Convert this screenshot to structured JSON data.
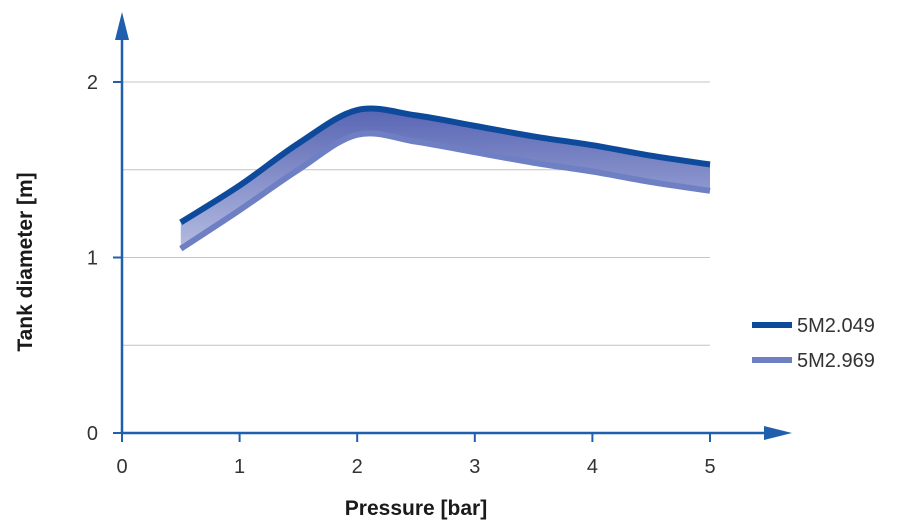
{
  "chart_data": {
    "type": "line",
    "xlabel": "Pressure [bar]",
    "ylabel": "Tank diameter [m]",
    "xlim": [
      0,
      5.6
    ],
    "ylim": [
      0,
      2.4
    ],
    "x_ticks": [
      "0",
      "1",
      "2",
      "3",
      "4",
      "5"
    ],
    "y_ticks": [
      "0",
      "1",
      "2"
    ],
    "grid": "horizontal at 0.5 intervals",
    "legend_position": "right",
    "series": [
      {
        "name": "5M2.049",
        "color": "#0d4a9c",
        "x": [
          0.5,
          1.0,
          1.5,
          2.0,
          2.5,
          3.0,
          3.5,
          4.0,
          4.5,
          5.0
        ],
        "values": [
          1.2,
          1.41,
          1.65,
          1.84,
          1.81,
          1.75,
          1.69,
          1.64,
          1.58,
          1.53
        ]
      },
      {
        "name": "5M2.969",
        "color": "#6f7fc4",
        "x": [
          0.5,
          1.0,
          1.5,
          2.0,
          2.5,
          3.0,
          3.5,
          4.0,
          4.5,
          5.0
        ],
        "values": [
          1.05,
          1.27,
          1.5,
          1.7,
          1.66,
          1.6,
          1.54,
          1.49,
          1.43,
          1.38
        ]
      }
    ],
    "band_color": "#8791cc"
  }
}
